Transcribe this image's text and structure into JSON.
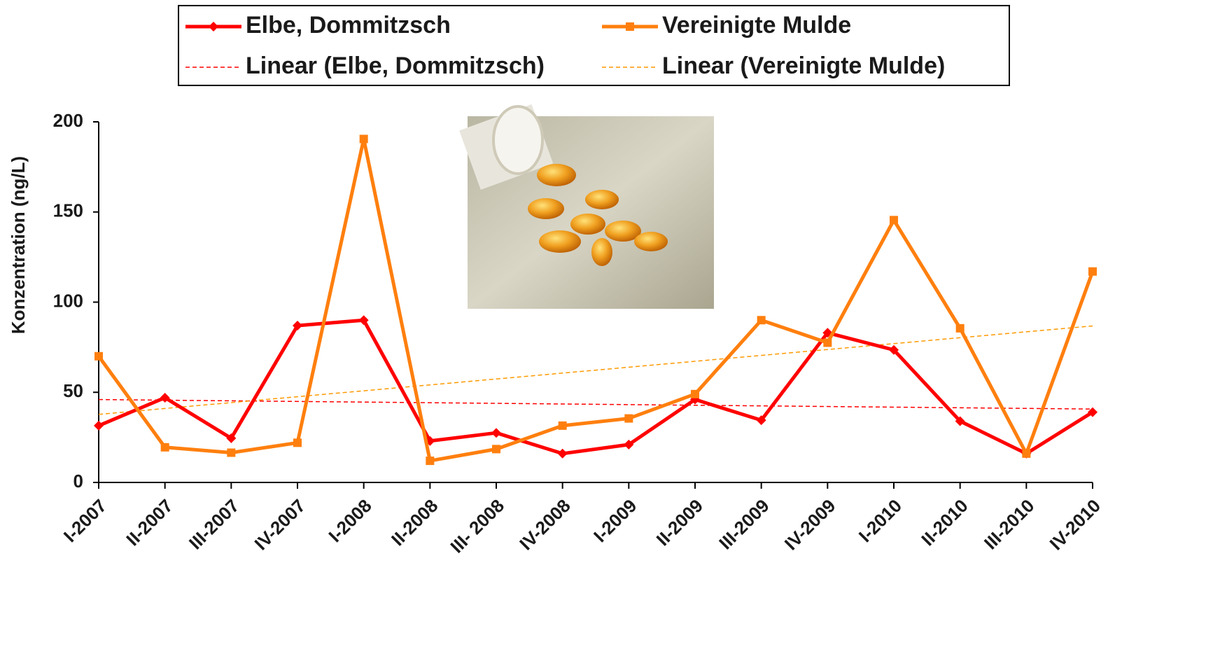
{
  "chart_data": {
    "type": "line",
    "y_label": "Konzentration (ng/L)",
    "categories": [
      "I-2007",
      "II-2007",
      "III-2007",
      "IV-2007",
      "I-2008",
      "II-2008",
      "III- 2008",
      "IV-2008",
      "I-2009",
      "II-2009",
      "III-2009",
      "IV-2009",
      "I-2010",
      "II-2010",
      "III-2010",
      "IV-2010"
    ],
    "series": [
      {
        "name": "Elbe, Dommitzsch",
        "color": "#ff0000",
        "marker": "diamond",
        "values": [
          31.5,
          47,
          24.5,
          87,
          90,
          23,
          27.5,
          16,
          21,
          46,
          34.5,
          83,
          73.5,
          34,
          16,
          39
        ]
      },
      {
        "name": "Vereinigte Mulde",
        "color": "#ff7f0e",
        "marker": "square",
        "values": [
          70,
          19.5,
          16.5,
          22,
          190.5,
          12,
          18.5,
          31.5,
          35.5,
          49,
          90,
          77.5,
          145.5,
          85.5,
          16,
          117
        ]
      }
    ],
    "trendlines": [
      {
        "name": "Linear (Elbe, Dommitzsch)",
        "series": 0,
        "color": "#ff0000"
      },
      {
        "name": "Linear (Vereinigte Mulde)",
        "series": 1,
        "color": "#ff9900"
      }
    ],
    "ylim": [
      0,
      200
    ],
    "yticks": [
      0,
      50,
      100,
      150,
      200
    ]
  }
}
